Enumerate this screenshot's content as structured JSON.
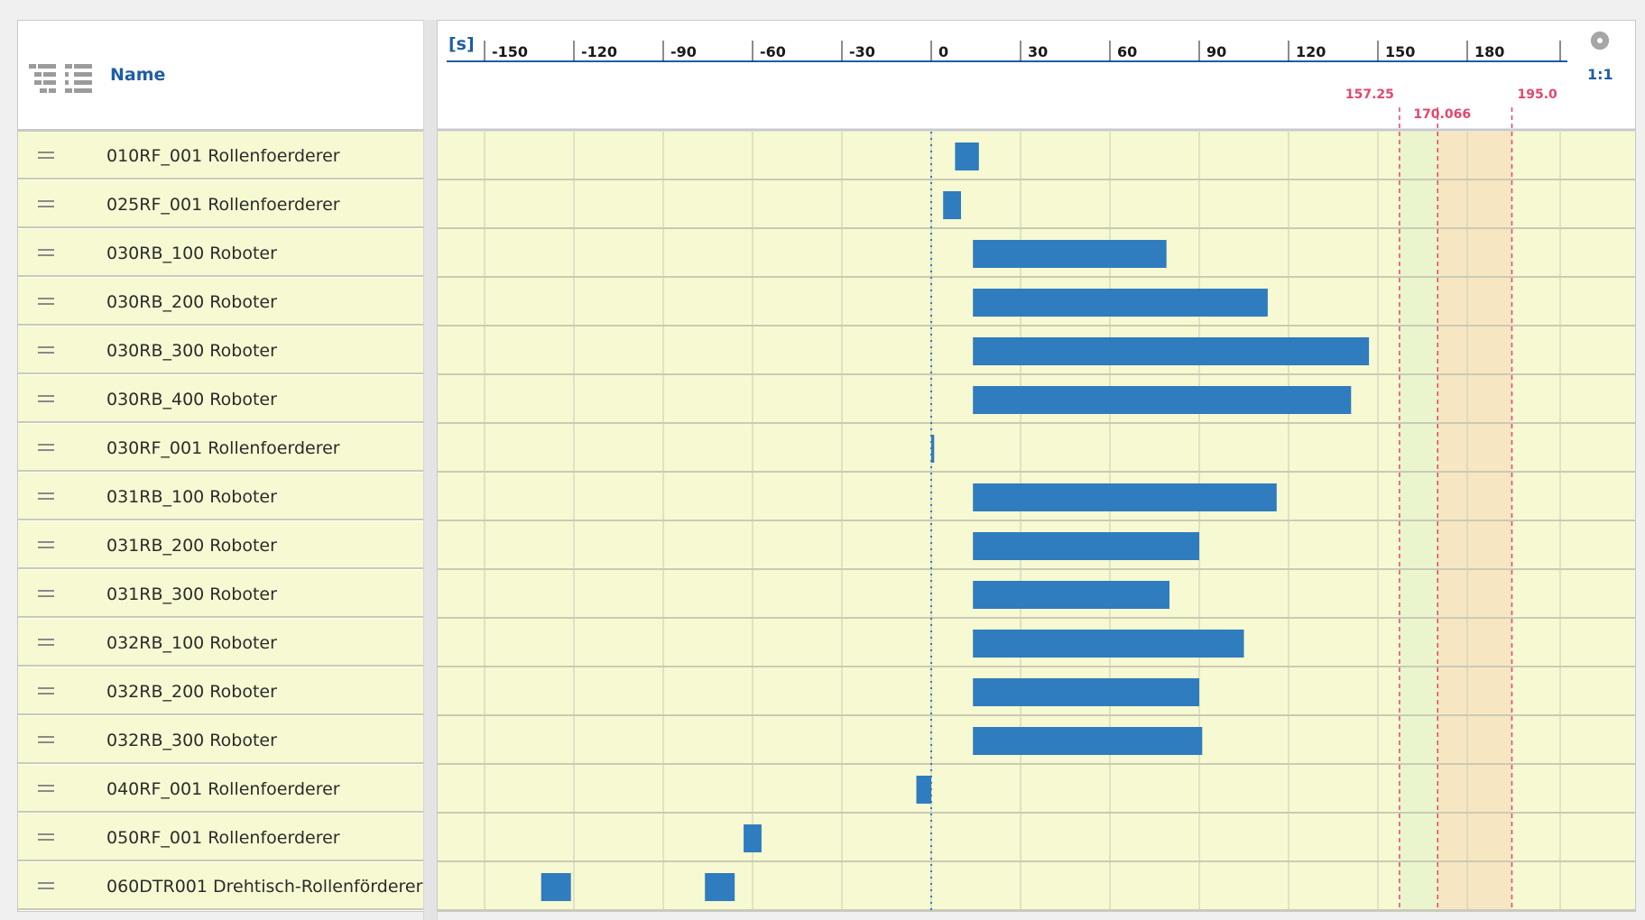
{
  "list": {
    "name_header": "Name"
  },
  "timeline": {
    "unit": "[s]",
    "scale": "1:1",
    "colors": {
      "background": "#f7f9d2",
      "bar": "#2f7cbf",
      "marker": "#e2476d",
      "zone_green": "#ebf5cd",
      "zone_orange": "#f7e6c2",
      "zero_line": "#2f7cbf"
    }
  },
  "chart_data": {
    "type": "gantt",
    "xunit": "[s]",
    "xlim": [
      -160,
      200
    ],
    "xticks": [
      -150,
      -120,
      -90,
      -60,
      -30,
      0,
      30,
      60,
      90,
      120,
      150,
      180
    ],
    "markers": [
      {
        "value": 157.25,
        "label": "157.25"
      },
      {
        "value": 170.066,
        "label": "170.066"
      },
      {
        "value": 195.0,
        "label": "195.0"
      }
    ],
    "zones": [
      {
        "from": 157.25,
        "to": 170.066,
        "color": "#ebf5cd"
      },
      {
        "from": 170.066,
        "to": 195.0,
        "color": "#f7e6c2"
      }
    ],
    "rows": [
      {
        "name": "010RF_001 Rollenfoerderer",
        "bars": [
          [
            8,
            16
          ]
        ]
      },
      {
        "name": "025RF_001 Rollenfoerderer",
        "bars": [
          [
            4,
            10
          ]
        ]
      },
      {
        "name": "030RB_100 Roboter",
        "bars": [
          [
            14,
            79
          ]
        ]
      },
      {
        "name": "030RB_200 Roboter",
        "bars": [
          [
            14,
            113
          ]
        ]
      },
      {
        "name": "030RB_300 Roboter",
        "bars": [
          [
            14,
            147
          ]
        ]
      },
      {
        "name": "030RB_400 Roboter",
        "bars": [
          [
            14,
            141
          ]
        ]
      },
      {
        "name": "030RF_001 Rollenfoerderer",
        "bars": [
          [
            0,
            1
          ]
        ]
      },
      {
        "name": "031RB_100 Roboter",
        "bars": [
          [
            14,
            116
          ]
        ]
      },
      {
        "name": "031RB_200 Roboter",
        "bars": [
          [
            14,
            90
          ]
        ]
      },
      {
        "name": "031RB_300 Roboter",
        "bars": [
          [
            14,
            80
          ]
        ]
      },
      {
        "name": "032RB_100 Roboter",
        "bars": [
          [
            14,
            105
          ]
        ]
      },
      {
        "name": "032RB_200 Roboter",
        "bars": [
          [
            14,
            90
          ]
        ]
      },
      {
        "name": "032RB_300 Roboter",
        "bars": [
          [
            14,
            91
          ]
        ]
      },
      {
        "name": "040RF_001 Rollenfoerderer",
        "bars": [
          [
            -5,
            0
          ]
        ]
      },
      {
        "name": "050RF_001 Rollenfoerderer",
        "bars": [
          [
            -63,
            -57
          ]
        ]
      },
      {
        "name": "060DTR001 Drehtisch-Rollenförderer",
        "bars": [
          [
            -131,
            -121
          ],
          [
            -76,
            -66
          ]
        ]
      }
    ]
  }
}
